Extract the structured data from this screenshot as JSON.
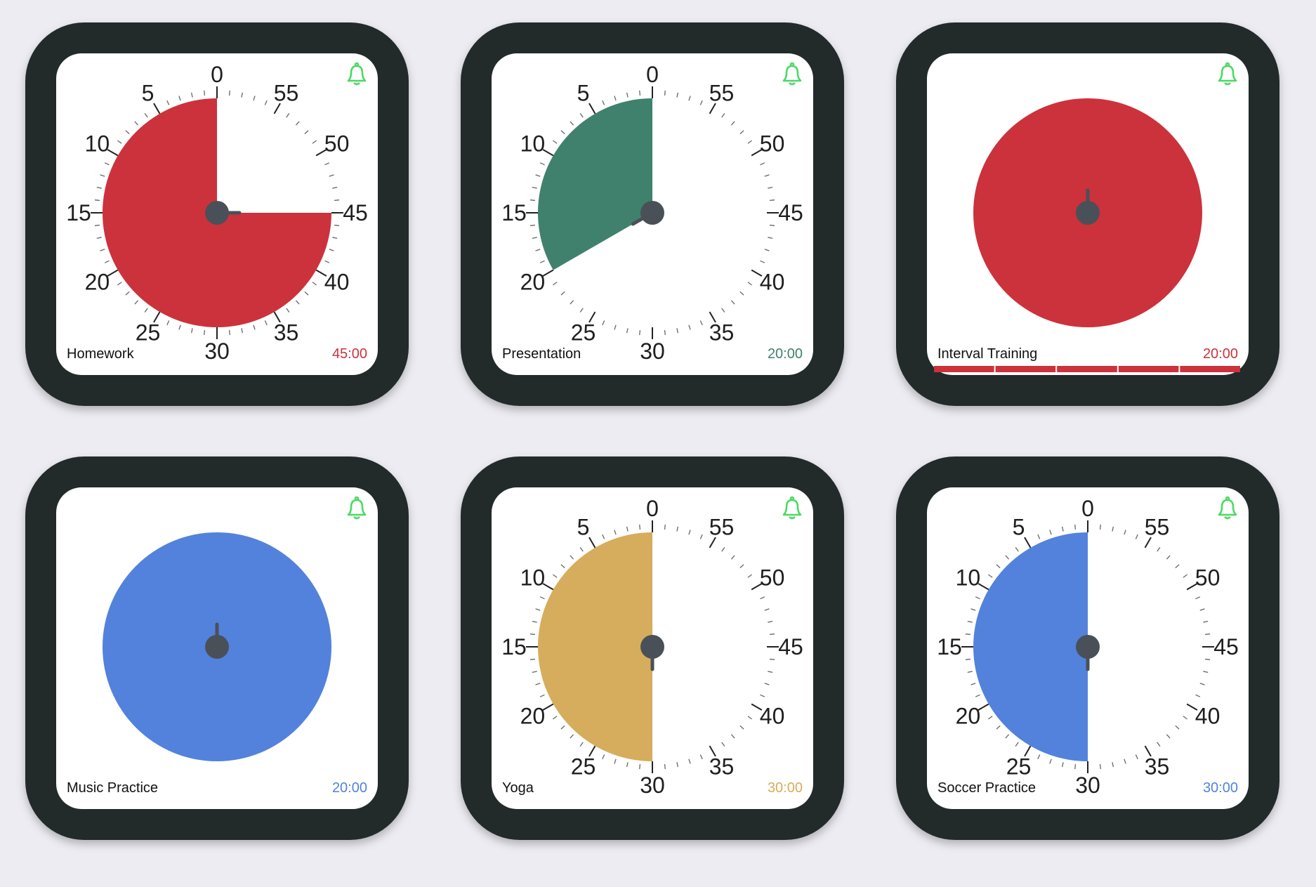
{
  "dial_labels": [
    0,
    5,
    10,
    15,
    20,
    25,
    30,
    35,
    40,
    45,
    50,
    55
  ],
  "timers": [
    {
      "name": "Homework",
      "time": "45:00",
      "color": "#cc323c",
      "dial": true,
      "minutes": 45
    },
    {
      "name": "Presentation",
      "time": "20:00",
      "color": "#3f816d",
      "dial": true,
      "minutes": 20
    },
    {
      "name": "Interval Training",
      "time": "20:00",
      "color": "#cc323c",
      "dial": false,
      "segments": 5
    },
    {
      "name": "Music Practice",
      "time": "20:00",
      "color": "#5282db",
      "dial": false
    },
    {
      "name": "Yoga",
      "time": "30:00",
      "color": "#d6ad5c",
      "dial": true,
      "minutes": 30
    },
    {
      "name": "Soccer Practice",
      "time": "30:00",
      "color": "#5282db",
      "dial": true,
      "minutes": 30
    }
  ]
}
